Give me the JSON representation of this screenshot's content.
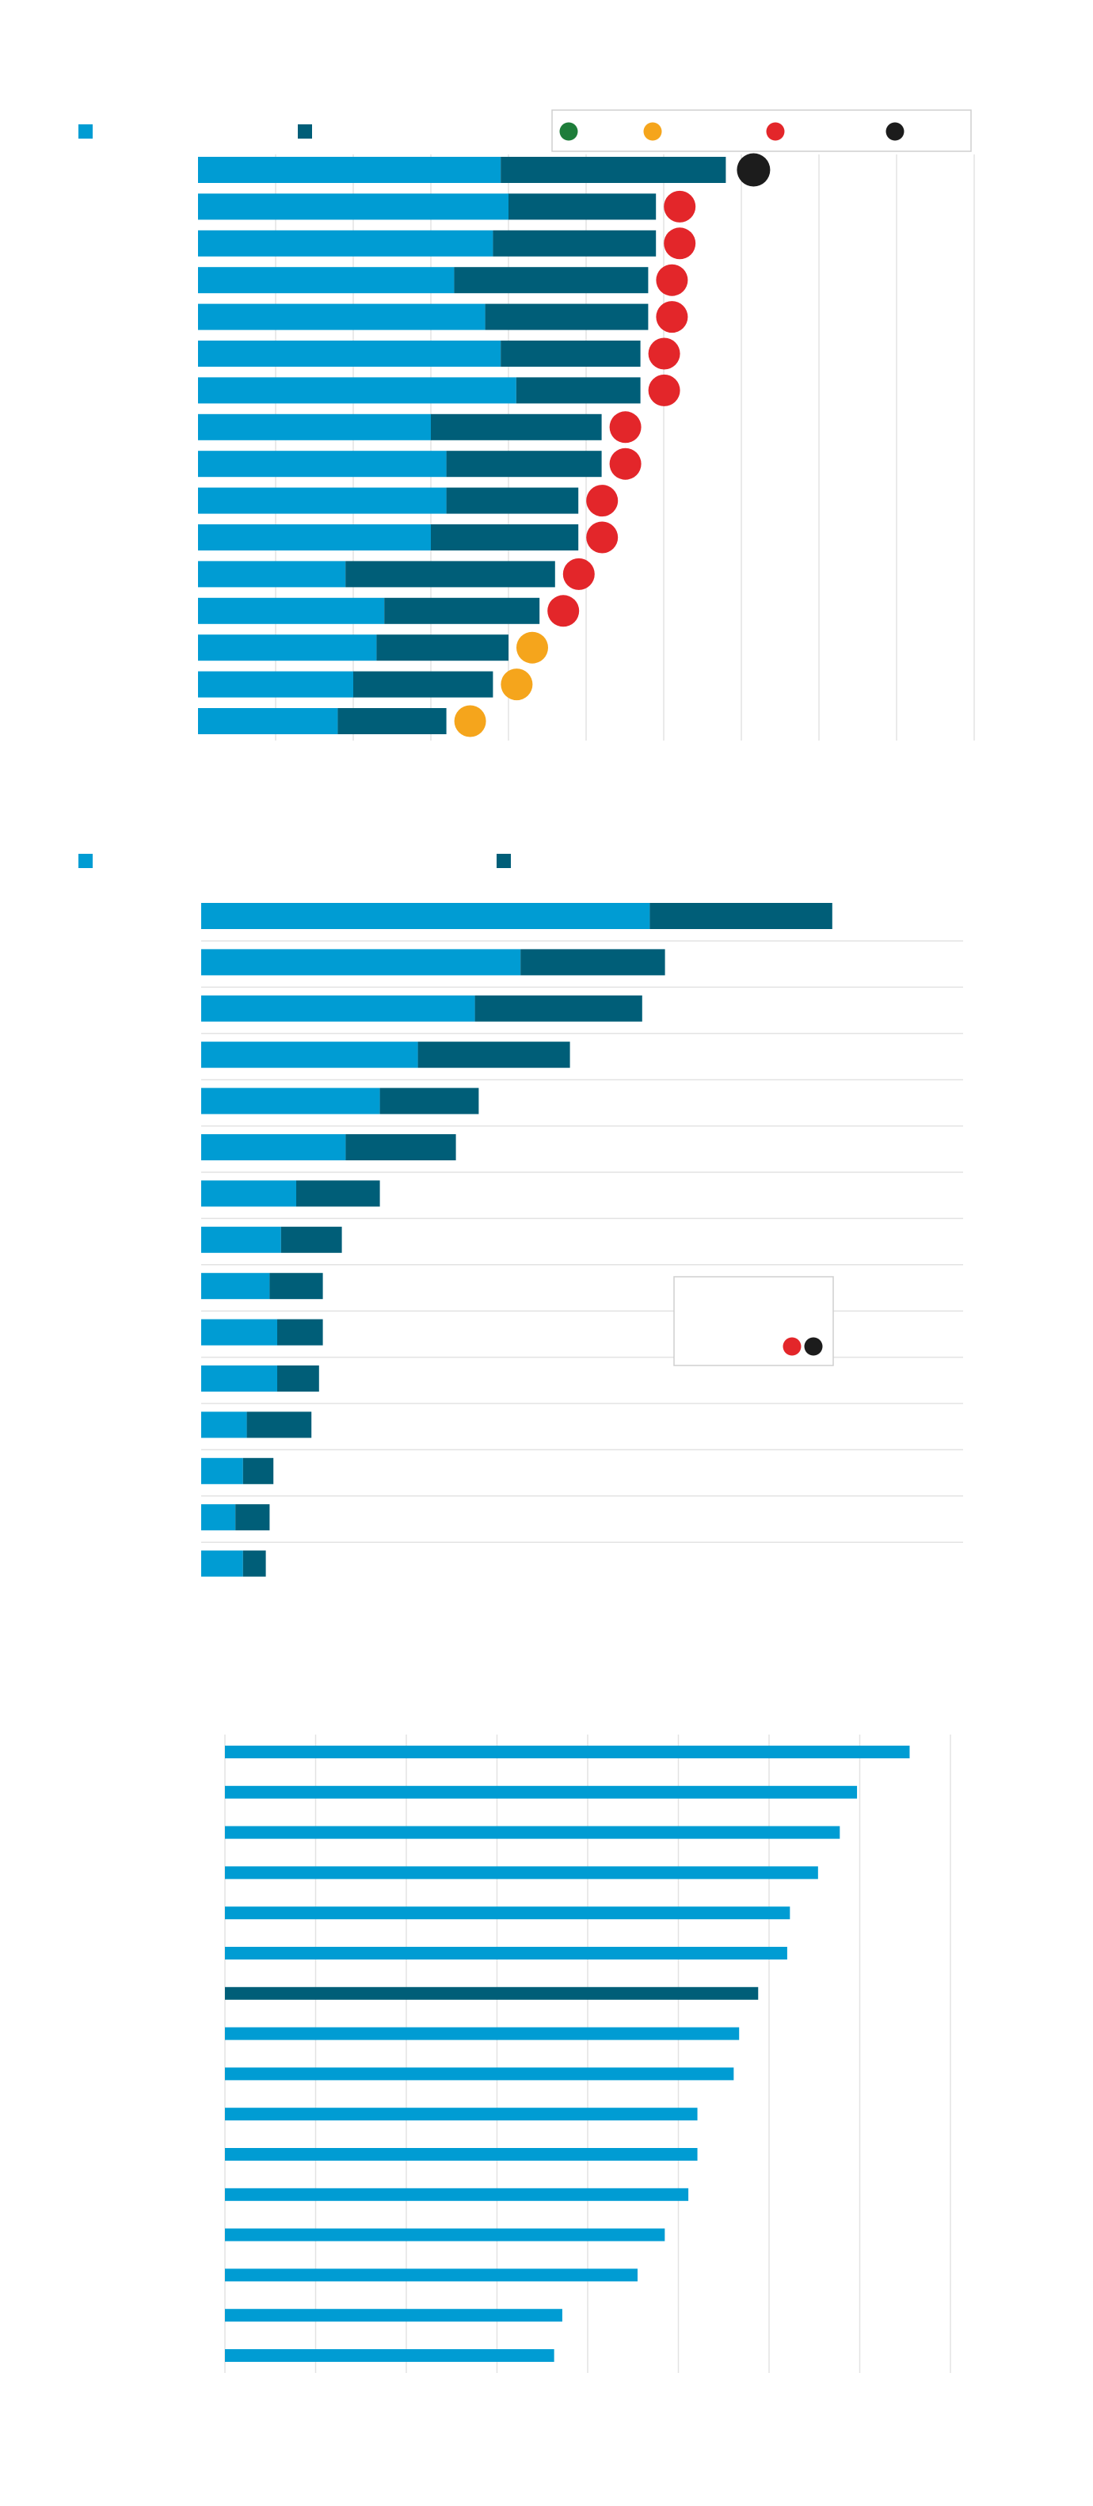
{
  "colors": {
    "light": "#009cd3",
    "dark": "#005e78",
    "green": "#1e7d3a",
    "amber": "#f5a51c",
    "red": "#e3262a",
    "black": "#1c1c1c",
    "grid": "#e3e3e3",
    "legend_border": "#cfcfcf"
  },
  "chart_data": [
    {
      "type": "bar",
      "stacked": true,
      "orientation": "horizontal",
      "title": "",
      "xlabel": "",
      "ylabel": "",
      "xlim": [
        0,
        100
      ],
      "grid": "vertical",
      "legend": {
        "series_placement": "top-left",
        "status_placement": "top-right",
        "status_markers": [
          {
            "color": "green",
            "label": ""
          },
          {
            "color": "amber",
            "label": ""
          },
          {
            "color": "red",
            "label": ""
          },
          {
            "color": "black",
            "label": ""
          }
        ]
      },
      "categories": [
        "",
        "",
        "",
        "",
        "",
        "",
        "",
        "",
        "",
        "",
        "",
        "",
        "",
        "",
        "",
        ""
      ],
      "series": [
        {
          "values": [
            39,
            40,
            38,
            33,
            37,
            39,
            41,
            30,
            32,
            32,
            30,
            19,
            24,
            23,
            20,
            18
          ]
        },
        {
          "values": [
            29,
            19,
            21,
            25,
            21,
            18,
            16,
            22,
            20,
            17,
            19,
            27,
            20,
            17,
            18,
            14
          ]
        }
      ],
      "status": [
        "black",
        "red",
        "red",
        "red",
        "red",
        "red",
        "red",
        "red",
        "red",
        "red",
        "red",
        "red",
        "red",
        "amber",
        "amber",
        "amber"
      ]
    },
    {
      "type": "bar",
      "stacked": true,
      "orientation": "horizontal",
      "title": "",
      "xlabel": "",
      "ylabel": "",
      "xlim": [
        0,
        100
      ],
      "grid": "horizontal",
      "legend": {
        "series_placement": "top",
        "status_placement": "lower-right",
        "status_markers": [
          {
            "color": "red",
            "label": ""
          },
          {
            "color": "black",
            "label": ""
          }
        ]
      },
      "categories": [
        "",
        "",
        "",
        "",
        "",
        "",
        "",
        "",
        "",
        "",
        "",
        "",
        "",
        "",
        ""
      ],
      "series": [
        {
          "values": [
            59,
            42,
            36,
            28.5,
            23.5,
            19,
            12.5,
            10.5,
            9,
            10,
            10,
            6,
            5.5,
            4.5,
            5.5
          ]
        },
        {
          "values": [
            24,
            19,
            22,
            20,
            13,
            14.5,
            11,
            8,
            7,
            6,
            5.5,
            8.5,
            4,
            4.5,
            3
          ]
        }
      ]
    },
    {
      "type": "bar",
      "orientation": "horizontal",
      "title": "",
      "xlabel": "",
      "ylabel": "",
      "xlim": [
        0,
        80
      ],
      "grid": "vertical",
      "categories": [
        "",
        "",
        "",
        "",
        "",
        "",
        "",
        "",
        "",
        "",
        "",
        "",
        "",
        "",
        "",
        ""
      ],
      "values": [
        75.5,
        69.7,
        67.8,
        65.4,
        62.3,
        62.0,
        58.8,
        56.7,
        56.1,
        52.1,
        52.1,
        51.1,
        48.5,
        45.5,
        37.2,
        36.3
      ],
      "highlight_index": 6
    }
  ]
}
